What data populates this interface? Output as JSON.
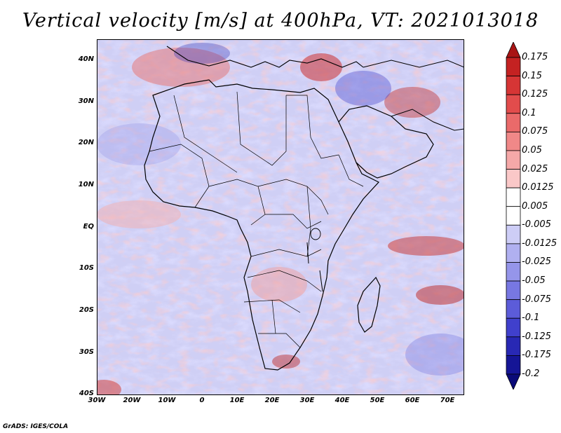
{
  "title": "Vertical velocity [m/s] at 400hPa, VT: 2021013018",
  "credit": "GrADS: IGES/COLA",
  "map": {
    "region": "Africa",
    "lat_range": [
      -40,
      45
    ],
    "lon_range": [
      -30,
      76
    ],
    "y_ticks": [
      "40N",
      "30N",
      "20N",
      "10N",
      "EQ",
      "10S",
      "20S",
      "30S",
      "40S"
    ],
    "x_ticks": [
      "30W",
      "20W",
      "10W",
      "0",
      "10E",
      "20E",
      "30E",
      "40E",
      "50E",
      "60E",
      "70E"
    ]
  },
  "colorbar": {
    "labels": [
      "0.175",
      "0.15",
      "0.125",
      "0.1",
      "0.075",
      "0.05",
      "0.025",
      "0.0125",
      "0.005",
      "-0.005",
      "-0.0125",
      "-0.025",
      "-0.05",
      "-0.075",
      "-0.1",
      "-0.125",
      "-0.175",
      "-0.2"
    ],
    "colors": [
      "#a81414",
      "#c42222",
      "#d63535",
      "#e24c4c",
      "#ea6a6a",
      "#f08888",
      "#f5a8a8",
      "#fac8c8",
      "#ffffff",
      "#ffffff",
      "#cdcdf6",
      "#b0b0f0",
      "#9595ea",
      "#7777e2",
      "#5c5cd9",
      "#4040cc",
      "#2828b4",
      "#151596",
      "#0a0a78"
    ]
  }
}
